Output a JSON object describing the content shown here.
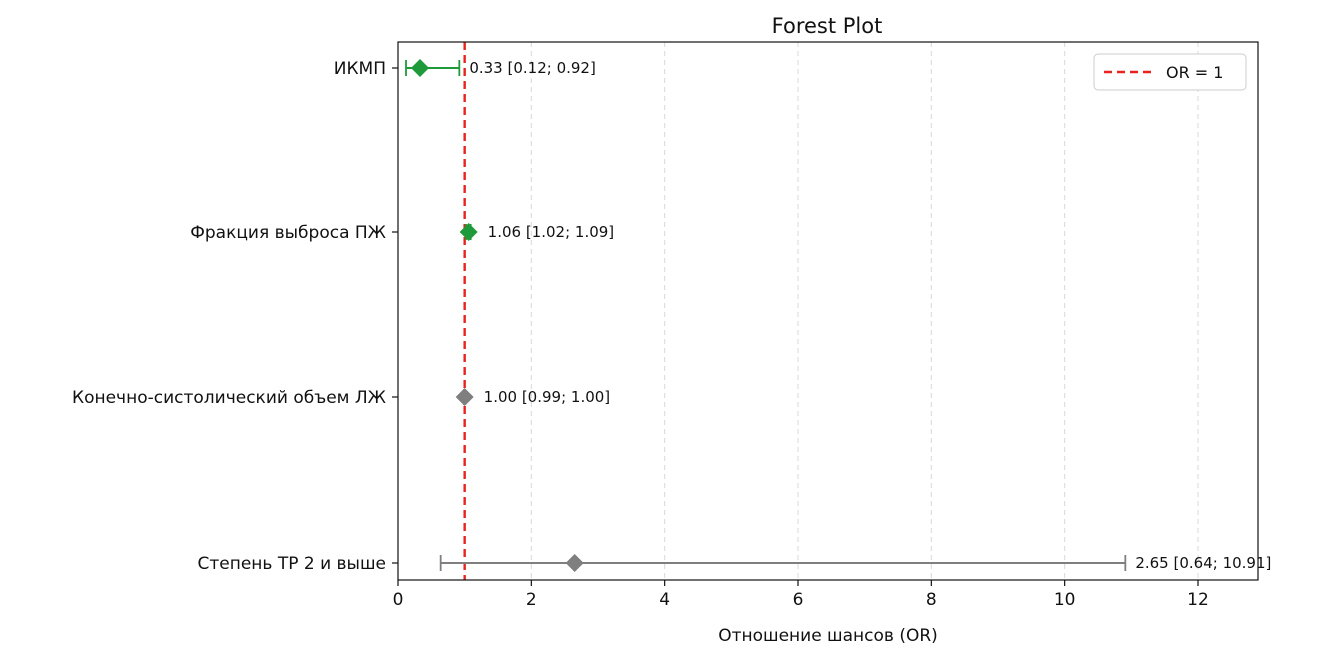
{
  "chart_data": {
    "type": "scatter",
    "subtype": "forest-plot",
    "title": "Forest Plot",
    "xlabel": "Отношение шансов (OR)",
    "ylabel": "",
    "xlim": [
      0,
      12.9
    ],
    "xticks": [
      0,
      2,
      4,
      6,
      8,
      10,
      12
    ],
    "grid": "vertical-dashed",
    "reference_line": {
      "x": 1,
      "label": "OR = 1",
      "color": "#e8231f",
      "style": "dashed"
    },
    "legend": {
      "placement": "top-right",
      "entries": [
        "OR = 1"
      ]
    },
    "rows": [
      {
        "label": "ИКМП",
        "or": 0.33,
        "lower": 0.12,
        "upper": 0.92,
        "text": "0.33 [0.12; 0.92]",
        "significant": true
      },
      {
        "label": "Фракция выброса ПЖ",
        "or": 1.06,
        "lower": 1.02,
        "upper": 1.09,
        "text": "1.06 [1.02; 1.09]",
        "significant": true
      },
      {
        "label": "Конечно-систолический объем ЛЖ",
        "or": 1.0,
        "lower": 0.99,
        "upper": 1.0,
        "text": "1.00 [0.99; 1.00]",
        "significant": false
      },
      {
        "label": "Степень ТР 2 и выше",
        "or": 2.65,
        "lower": 0.64,
        "upper": 10.91,
        "text": "2.65 [0.64; 10.91]",
        "significant": false
      }
    ],
    "colors": {
      "significant": "#1e9a3a",
      "non_significant": "#7f7f7f",
      "reference": "#e8231f",
      "grid": "#d9d9d9"
    }
  }
}
